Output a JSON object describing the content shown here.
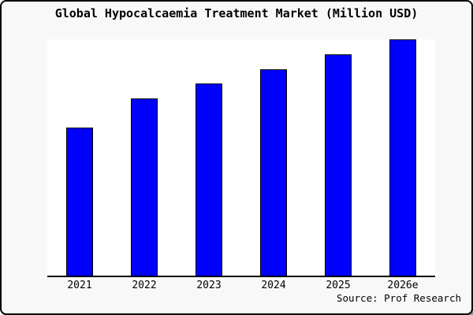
{
  "title": "Global Hypocalcaemia Treatment Market (Million USD)",
  "source": "Source: Prof Research",
  "colors": {
    "bar_fill": "#0000ff",
    "bar_border": "#000000",
    "frame_background": "#f8f8f8",
    "plot_background": "#ffffff",
    "frame_border": "#000000",
    "axis": "#000000",
    "text": "#000000"
  },
  "chart_data": {
    "type": "bar",
    "title": "Global Hypocalcaemia Treatment Market (Million USD)",
    "categories": [
      "2021",
      "2022",
      "2023",
      "2024",
      "2025",
      "2026e"
    ],
    "values": [
      188,
      225,
      244,
      262,
      281,
      300
    ],
    "value_units": "relative bar heights in pixels (y-axis has no tick labels in source image)",
    "xlabel": "",
    "ylabel": "",
    "grid": false,
    "legend": "none",
    "y_axis_ticks": "none",
    "caption": "Source: Prof Research"
  }
}
